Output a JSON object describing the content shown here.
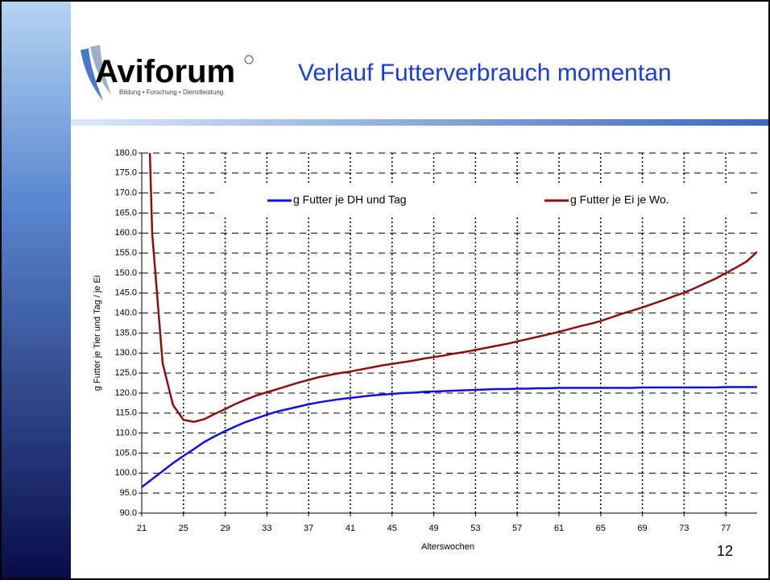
{
  "slide": {
    "logo": "Aviforum",
    "logo_tagline": "Bildung • Forschung • Dienstleistung",
    "title": "Verlauf Futterverbrauch momentan",
    "page_number": "12"
  },
  "chart_data": {
    "type": "line",
    "xlabel": "Alterswochen",
    "ylabel": "g Futter je Tier und Tag / je Ei",
    "x": [
      21,
      22,
      23,
      24,
      25,
      26,
      27,
      28,
      29,
      30,
      31,
      32,
      33,
      34,
      35,
      36,
      37,
      38,
      39,
      40,
      41,
      42,
      43,
      44,
      45,
      46,
      47,
      48,
      49,
      50,
      51,
      52,
      53,
      54,
      55,
      56,
      57,
      58,
      59,
      60,
      61,
      62,
      63,
      64,
      65,
      66,
      67,
      68,
      69,
      70,
      71,
      72,
      73,
      74,
      75,
      76,
      77,
      78,
      79,
      80
    ],
    "series": [
      {
        "name": "g Futter je DH und Tag",
        "color": "#1010e0",
        "values": [
          96.5,
          98.5,
          100.5,
          102.5,
          104.3,
          106,
          107.8,
          109.2,
          110.5,
          111.7,
          112.8,
          113.7,
          114.6,
          115.4,
          116,
          116.6,
          117.2,
          117.7,
          118.1,
          118.5,
          118.8,
          119.1,
          119.4,
          119.6,
          119.8,
          120,
          120.1,
          120.3,
          120.4,
          120.5,
          120.6,
          120.7,
          120.8,
          120.9,
          121,
          121,
          121.1,
          121.1,
          121.2,
          121.2,
          121.3,
          121.3,
          121.3,
          121.3,
          121.3,
          121.3,
          121.3,
          121.3,
          121.4,
          121.4,
          121.4,
          121.4,
          121.4,
          121.4,
          121.4,
          121.4,
          121.5,
          121.5,
          121.5,
          121.5
        ]
      },
      {
        "name": "g Futter je Ei je Wo.",
        "color": "#8b1010",
        "values": [
          250,
          160,
          127.5,
          117,
          113.3,
          112.8,
          113.5,
          114.8,
          116,
          117.3,
          118.4,
          119.4,
          120.2,
          121,
          121.8,
          122.6,
          123.3,
          124,
          124.5,
          125,
          125.4,
          125.9,
          126.4,
          126.9,
          127.3,
          127.7,
          128.1,
          128.6,
          129,
          129.4,
          129.9,
          130.3,
          130.8,
          131.3,
          131.8,
          132.3,
          132.9,
          133.5,
          134.1,
          134.7,
          135.3,
          136,
          136.7,
          137.3,
          138,
          138.9,
          139.8,
          140.6,
          141.4,
          142.3,
          143.2,
          144.2,
          145.1,
          146.2,
          147.4,
          148.6,
          150,
          151.4,
          152.9,
          155.3
        ]
      }
    ],
    "xlim": [
      21,
      80
    ],
    "xticks": [
      21,
      25,
      29,
      33,
      37,
      41,
      45,
      49,
      53,
      57,
      61,
      65,
      69,
      73,
      77
    ],
    "ylim": [
      90,
      180
    ],
    "yticks": [
      {
        "value": 90,
        "label": "90.0"
      },
      {
        "value": 95,
        "label": "95.0"
      },
      {
        "value": 100,
        "label": "100.0"
      },
      {
        "value": 105,
        "label": "105.0"
      },
      {
        "value": 110,
        "label": "110.0"
      },
      {
        "value": 115,
        "label": "115.0"
      },
      {
        "value": 120,
        "label": "120.0"
      },
      {
        "value": 125,
        "label": "125.0"
      },
      {
        "value": 130,
        "label": "130.0"
      },
      {
        "value": 135,
        "label": "135.0"
      },
      {
        "value": 140,
        "label": "140.0"
      },
      {
        "value": 145,
        "label": "145.0"
      },
      {
        "value": 150,
        "label": "150.0"
      },
      {
        "value": 155,
        "label": "155.0"
      },
      {
        "value": 160,
        "label": "160.0"
      },
      {
        "value": 165,
        "label": "165.0"
      },
      {
        "value": 170,
        "label": "170.0"
      },
      {
        "value": 175,
        "label": "175.0"
      },
      {
        "value": 180,
        "label": "180.0"
      }
    ],
    "grid": true,
    "legend": "top"
  }
}
